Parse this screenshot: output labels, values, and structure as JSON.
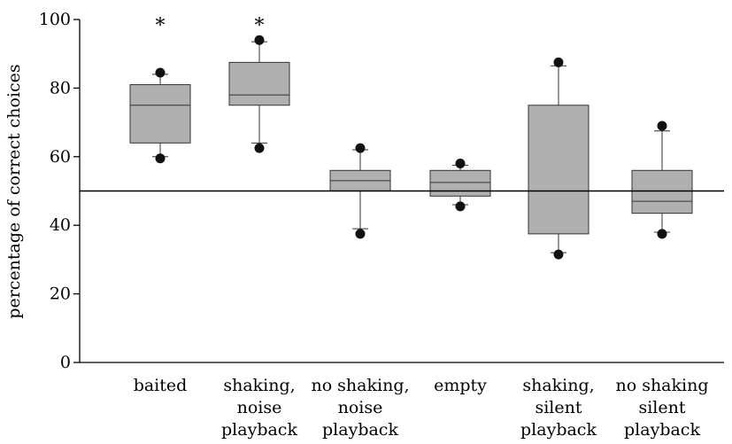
{
  "chart_data": {
    "type": "boxplot",
    "xlabel": "",
    "ylabel": "percentage of correct choices",
    "ylim": [
      0,
      100
    ],
    "yticks": [
      0,
      20,
      40,
      60,
      80,
      100
    ],
    "reference_line": 50,
    "grid": false,
    "colors": {
      "box_fill": "#b0b0b0",
      "stroke": "#333333"
    },
    "categories": [
      {
        "lines": [
          "baited"
        ],
        "min": 60,
        "q1": 64,
        "median": 75,
        "q3": 81,
        "max": 84,
        "outliers": [
          59.5,
          84.5
        ],
        "annotation": "*"
      },
      {
        "lines": [
          "shaking,",
          "noise",
          "playback"
        ],
        "min": 64,
        "q1": 75,
        "median": 78,
        "q3": 87.5,
        "max": 93.5,
        "outliers": [
          62.5,
          94
        ],
        "annotation": "*"
      },
      {
        "lines": [
          "no shaking,",
          "noise",
          "playback"
        ],
        "min": 39,
        "q1": 50,
        "median": 53,
        "q3": 56,
        "max": 62,
        "outliers": [
          37.5,
          62.5
        ],
        "annotation": ""
      },
      {
        "lines": [
          "empty"
        ],
        "min": 46,
        "q1": 48.5,
        "median": 52.5,
        "q3": 56,
        "max": 57.5,
        "outliers": [
          45.5,
          58
        ],
        "annotation": ""
      },
      {
        "lines": [
          "shaking,",
          "silent",
          "playback"
        ],
        "min": 32,
        "q1": 37.5,
        "median": 50,
        "q3": 75,
        "max": 86.5,
        "outliers": [
          31.5,
          87.5
        ],
        "annotation": ""
      },
      {
        "lines": [
          "no shaking",
          "silent",
          "playback"
        ],
        "min": 38,
        "q1": 43.5,
        "median": 47,
        "q3": 56,
        "max": 67.5,
        "outliers": [
          37.5,
          69
        ],
        "annotation": ""
      }
    ]
  }
}
